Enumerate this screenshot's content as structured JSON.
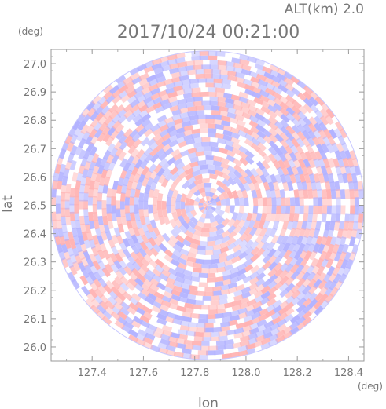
{
  "header": {
    "altitude": "ALT(km) 2.0",
    "datetime": "2017/10/24 00:21:00"
  },
  "chart_data": {
    "type": "heatmap",
    "title": "2017/10/24 00:21:00",
    "annotation": "ALT(km) 2.0",
    "xlabel": "lon",
    "ylabel": "lat",
    "x_unit": "(deg)",
    "y_unit": "(deg)",
    "xlim": [
      127.24,
      128.46
    ],
    "ylim": [
      25.95,
      27.05
    ],
    "xticks": [
      "127.4",
      "127.6",
      "127.8",
      "128.0",
      "128.2",
      "128.4"
    ],
    "yticks": [
      "26.0",
      "26.1",
      "26.2",
      "26.3",
      "26.4",
      "26.5",
      "26.6",
      "26.7",
      "26.8",
      "26.9",
      "27.0"
    ],
    "center": {
      "lon": 127.85,
      "lat": 26.5
    },
    "radius_deg": {
      "lon": 0.61,
      "lat": 0.545
    },
    "colors": {
      "positive": "#ffb3b3",
      "negative": "#b3b3ff",
      "neutral": "#ffffff"
    },
    "grid": false
  }
}
